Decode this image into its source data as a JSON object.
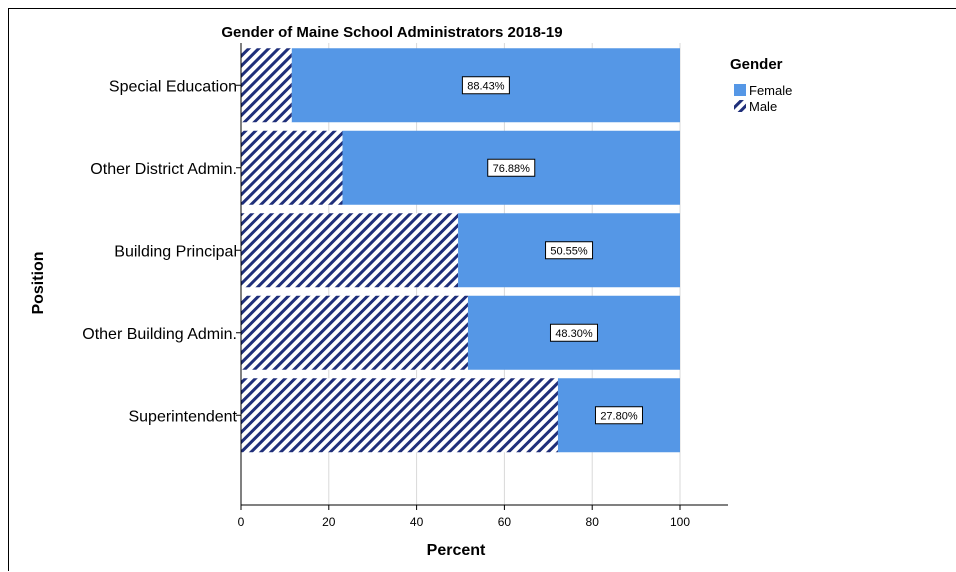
{
  "chart_data": {
    "type": "bar",
    "orientation": "horizontal",
    "stacked": true,
    "title": "Gender of Maine School Administrators 2018-19",
    "xlabel": "Percent",
    "ylabel": "Position",
    "xlim": [
      0,
      100
    ],
    "xticks": [
      "0",
      "20",
      "40",
      "60",
      "80",
      "100"
    ],
    "grid": true,
    "legend": {
      "title": "Gender",
      "placement": "right"
    },
    "categories": [
      "Special Education",
      "Other District Admin.",
      "Building Principal",
      "Other Building Admin.",
      "Superintendent"
    ],
    "series": [
      {
        "name": "Male",
        "values": [
          11.57,
          23.12,
          49.45,
          51.7,
          72.2
        ],
        "color": "#1f2f7a",
        "pattern": "diagonal-hatch"
      },
      {
        "name": "Female",
        "values": [
          88.43,
          76.88,
          50.55,
          48.3,
          27.8
        ],
        "color": "#5597e6",
        "labels": [
          "88.43%",
          "76.88%",
          "50.55%",
          "48.30%",
          "27.80%"
        ]
      }
    ]
  }
}
